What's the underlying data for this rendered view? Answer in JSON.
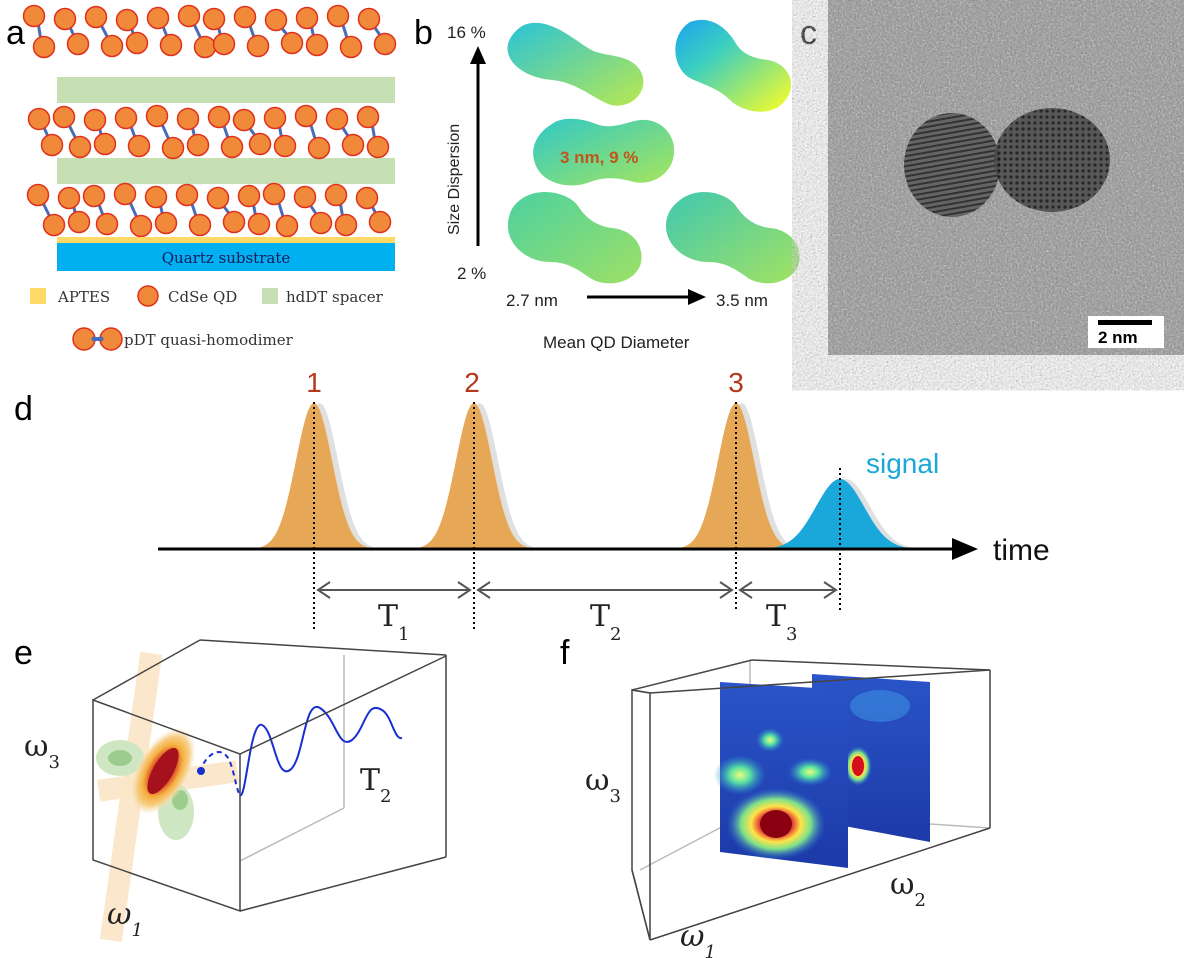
{
  "panels": {
    "a": {
      "label": "a",
      "substrate": "Quartz substrate",
      "legend": {
        "aptes": "APTES",
        "qd": "CdSe QD",
        "spacer": "hdDT spacer",
        "dimer": "pDT quasi-homodimer"
      }
    },
    "b": {
      "label": "b",
      "y_axis_label": "Size Dispersion",
      "y_top": "16 %",
      "y_bottom": "2 %",
      "x_left": "2.7 nm",
      "x_right": "3.5 nm",
      "x_axis_label": "Mean QD Diameter",
      "center_label": "3 nm, 9 %"
    },
    "c": {
      "label": "c",
      "scale_bar": "2 nm"
    },
    "d": {
      "label": "d",
      "pulses": [
        "1",
        "2",
        "3"
      ],
      "signal": "signal",
      "time": "time",
      "intervals": [
        {
          "name": "T",
          "sub": "1"
        },
        {
          "name": "T",
          "sub": "2"
        },
        {
          "name": "T",
          "sub": "3"
        }
      ]
    },
    "e": {
      "label": "e",
      "w3": {
        "name": "ω",
        "sub": "3"
      },
      "w1": {
        "name": "ω",
        "sub": "1"
      },
      "t2": {
        "name": "T",
        "sub": "2"
      }
    },
    "f": {
      "label": "f",
      "w3": {
        "name": "ω",
        "sub": "3"
      },
      "w1": {
        "name": "ω",
        "sub": "1"
      },
      "w2": {
        "name": "ω",
        "sub": "2"
      }
    }
  },
  "colors": {
    "qd_fill": "#f08a3a",
    "qd_edge": "#e0301c",
    "linker": "#4a6cb8",
    "spacer": "#c6e0b4",
    "aptes": "#ffd966",
    "substrate": "#00b0f0",
    "pulse": "#e6a857",
    "signal": "#1aa7d9",
    "pulse_label": "#b5371a",
    "center_label": "#c0561a",
    "trace": "#1a2fd0"
  }
}
